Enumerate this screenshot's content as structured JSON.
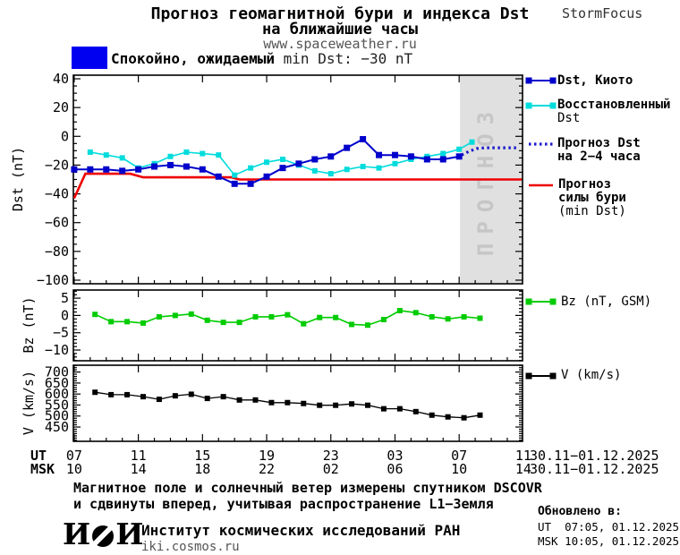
{
  "header": {
    "title_line1": "Прогноз геомагнитной бури и индекса Dst",
    "title_line2": "на ближайшие часы",
    "site": "www.spaceweather.ru",
    "brand": "StormFocus"
  },
  "status_banner": {
    "color": "#0000f0",
    "label": "Спокойно, ожидаемый ",
    "value": "min Dst: −30 nT"
  },
  "forecast_overlay": {
    "text": "ПРОГНОЗ",
    "bg": "#e0e0e0",
    "fg": "#c6c6c6"
  },
  "legend": {
    "dst_kyoto": "Dst, Киото",
    "dst_restored_l1": "Восстановленный",
    "dst_restored_l2": "Dst",
    "dst_forecast_l1": "Прогноз Dst",
    "dst_forecast_l2": "на 2−4 часа",
    "storm_forecast_l1": "Прогноз",
    "storm_forecast_l2": "силы бури",
    "storm_forecast_l3": "(min Dst)",
    "bz": "Bz (nT, GSM)",
    "v": "V (km/s)"
  },
  "footer": {
    "note_line1": "Магнитное поле и солнечный ветер измерены спутником DSCOVR",
    "note_line2": "и сдвинуты вперед, учитывая распространение L1−Земля",
    "logo_left": "И",
    "logo_right": "И",
    "institute": "Институт космических исследований РАН",
    "institute_site": "iki.cosmos.ru",
    "updated_label": "Обновлено в:",
    "updated_ut": "UT  07:05, 01.12.2025",
    "updated_msk": "MSK 10:05, 01.12.2025"
  },
  "chart_data": {
    "type": "line",
    "title": "Прогноз геомагнитной бури и индекса Dst на ближайшие часы",
    "xaxis": {
      "ut_label": "UT",
      "msk_label": "MSK",
      "ut_ticks": [
        "07",
        "11",
        "15",
        "19",
        "23",
        "03",
        "07",
        "11"
      ],
      "msk_ticks": [
        "10",
        "14",
        "18",
        "22",
        "02",
        "06",
        "10",
        "14"
      ],
      "date_range_ut": "30.11−01.12.2025",
      "date_range_msk": "30.11−01.12.2025",
      "xlim_hours": [
        6.95,
        34.95
      ],
      "major_tick_hours": [
        7,
        11,
        15,
        19,
        23,
        27,
        31,
        35
      ]
    },
    "panels": [
      {
        "id": "dst",
        "axis_label": "Dst (nT)",
        "yticks": [
          40,
          20,
          0,
          -20,
          -40,
          -60,
          -80,
          -100
        ],
        "ytick_labels": [
          "40",
          "20",
          "0",
          "−20",
          "−40",
          "−60",
          "−80",
          "−100"
        ],
        "ylim": [
          -102.5,
          42.5
        ],
        "y_minor_step": 5,
        "forecast_region": {
          "x_from": 31.05,
          "x_to": 34.95
        },
        "series": [
          {
            "name": "Dst, Киото",
            "color": "#0000cc",
            "line_width": 2,
            "marker_size": 7,
            "x": [
              7,
              8,
              9,
              10,
              11,
              12,
              13,
              14,
              15,
              16,
              17,
              18,
              19,
              20,
              21,
              22,
              23,
              24,
              25,
              26,
              27,
              28,
              29,
              30,
              31
            ],
            "y": [
              -23,
              -23,
              -23,
              -24,
              -23,
              -21,
              -20,
              -21,
              -23,
              -28,
              -33,
              -33,
              -28,
              -22,
              -19,
              -16,
              -14,
              -8,
              -2,
              -13,
              -13,
              -14,
              -16,
              -16,
              -14
            ]
          },
          {
            "name": "Восстановленный Dst",
            "color": "#00dcdc",
            "line_width": 1.6,
            "marker_size": 6,
            "x": [
              8,
              9,
              10,
              11,
              12,
              13,
              14,
              15,
              16,
              17,
              18,
              19,
              20,
              21,
              22,
              23,
              24,
              25,
              26,
              27,
              28,
              29,
              30,
              31,
              31.8
            ],
            "y": [
              -11,
              -13,
              -15,
              -22,
              -19,
              -14,
              -11,
              -12,
              -13,
              -27,
              -22,
              -18,
              -16,
              -20,
              -24,
              -26,
              -23,
              -21,
              -22,
              -19,
              -16,
              -14,
              -12,
              -9,
              -4
            ]
          },
          {
            "name": "Прогноз Dst на 2−4 часа",
            "color": "#1a1acc",
            "dotted": true,
            "line_width": 3.2,
            "marker_size": 0,
            "x": [
              31.15,
              31.6,
              32.1,
              32.6,
              33.1,
              34.6
            ],
            "y": [
              -13,
              -10.5,
              -8.5,
              -8,
              -8,
              -8
            ]
          },
          {
            "name": "Прогноз силы бури (min Dst)",
            "color": "#ee0000",
            "line_width": 2.6,
            "marker_size": 0,
            "x": [
              7,
              7.7,
              10.5,
              11.3,
              16.8,
              17.3,
              34.9
            ],
            "y": [
              -43,
              -26,
              -26,
              -28.5,
              -28.5,
              -30,
              -30
            ]
          }
        ]
      },
      {
        "id": "bz",
        "axis_label": "Bz (nT)",
        "yticks": [
          5,
          0,
          -5,
          -10
        ],
        "ytick_labels": [
          "5",
          "0",
          "−5",
          "−10"
        ],
        "ylim": [
          -13.1,
          7.35
        ],
        "y_minor_step": 1,
        "series": [
          {
            "name": "Bz (nT, GSM)",
            "color": "#00cc00",
            "line_width": 1.6,
            "marker_size": 6,
            "x": [
              8.3,
              9.3,
              10.3,
              11.3,
              12.3,
              13.3,
              14.3,
              15.3,
              16.3,
              17.3,
              18.3,
              19.3,
              20.3,
              21.3,
              22.3,
              23.3,
              24.3,
              25.3,
              26.3,
              27.3,
              28.3,
              29.3,
              30.3,
              31.3,
              32.3
            ],
            "y": [
              0.3,
              -1.8,
              -1.8,
              -2.2,
              -0.4,
              0.0,
              0.4,
              -1.4,
              -2.0,
              -2.0,
              -0.4,
              -0.4,
              0.2,
              -2.4,
              -0.6,
              -0.6,
              -2.6,
              -2.8,
              -1.2,
              1.4,
              0.8,
              -0.4,
              -1.0,
              -0.4,
              -0.8
            ]
          }
        ]
      },
      {
        "id": "v",
        "axis_label": "V (km/s)",
        "yticks": [
          700,
          650,
          600,
          550,
          500,
          450
        ],
        "ytick_labels": [
          "700",
          "650",
          "600",
          "550",
          "500",
          "450"
        ],
        "ylim": [
          385,
          731
        ],
        "y_minor_step": 10,
        "series": [
          {
            "name": "V (km/s)",
            "color": "#000000",
            "line_width": 1.3,
            "marker_size": 6,
            "x": [
              8.3,
              9.3,
              10.3,
              11.3,
              12.3,
              13.3,
              14.3,
              15.3,
              16.3,
              17.3,
              18.3,
              19.3,
              20.3,
              21.3,
              22.3,
              23.3,
              24.3,
              25.3,
              26.3,
              27.3,
              28.3,
              29.3,
              30.3,
              31.3,
              32.3
            ],
            "y": [
              608,
              597,
              597,
              588,
              576,
              592,
              599,
              580,
              588,
              573,
              573,
              561,
              561,
              557,
              549,
              549,
              555,
              549,
              533,
              533,
              520,
              504,
              496,
              492,
              504
            ]
          }
        ]
      }
    ]
  }
}
